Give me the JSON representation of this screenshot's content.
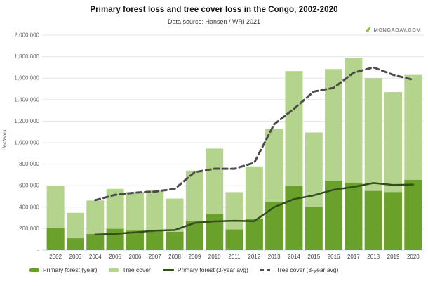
{
  "header": {
    "title": "Primary forest loss and tree cover loss in the Congo, 2002-2020",
    "subtitle": "Data source: Hansen / WRI 2021"
  },
  "branding": {
    "logo_text": "MONGABAY.COM",
    "leaf_color": "#8dc63f",
    "text_color": "#8a8a8a"
  },
  "chart_data": {
    "type": "bar",
    "title": "Primary forest loss and tree cover loss in the Congo, 2002-2020",
    "subtitle": "Data source: Hansen / WRI 2021",
    "xlabel": "",
    "ylabel": "Hectares",
    "ylim": [
      0,
      2000000
    ],
    "y_tick_values": [
      0,
      200000,
      400000,
      600000,
      800000,
      1000000,
      1200000,
      1400000,
      1600000,
      1800000,
      2000000
    ],
    "y_tick_labels": [
      "-",
      "200,000",
      "400,000",
      "600,000",
      "800,000",
      "1,000,000",
      "1,200,000",
      "1,400,000",
      "1,600,000",
      "1,800,000",
      "2,000,000"
    ],
    "grid": true,
    "legend_position": "bottom",
    "categories": [
      "2002",
      "2003",
      "2004",
      "2005",
      "2006",
      "2007",
      "2008",
      "2009",
      "2010",
      "2011",
      "2012",
      "2013",
      "2014",
      "2015",
      "2016",
      "2017",
      "2018",
      "2019",
      "2020"
    ],
    "series": [
      {
        "name": "Primary forest (year)",
        "type": "bar",
        "style": "solid",
        "color": "#6aa12b",
        "values": [
          205000,
          110000,
          150000,
          198000,
          181000,
          188000,
          170000,
          268000,
          335000,
          192000,
          290000,
          450000,
          595000,
          403000,
          645000,
          628000,
          551000,
          540000,
          654000
        ]
      },
      {
        "name": "Tree cover",
        "type": "bar",
        "style": "solid",
        "color": "#b4d38c",
        "values": [
          600000,
          348000,
          462000,
          570000,
          540000,
          555000,
          480000,
          740000,
          945000,
          540000,
          780000,
          1128000,
          1665000,
          1095000,
          1685000,
          1790000,
          1600000,
          1470000,
          1630000
        ]
      },
      {
        "name": "Primary forest (3-year avg)",
        "type": "line",
        "style": "solid",
        "color": "#344d1d",
        "values": [
          null,
          null,
          145000,
          152000,
          165000,
          181000,
          187000,
          253000,
          268000,
          274000,
          270000,
          400000,
          475000,
          510000,
          562000,
          588000,
          625000,
          606000,
          610000
        ]
      },
      {
        "name": "Tree cover (3-year avg)",
        "type": "line",
        "style": "dashed",
        "color": "#4d4d4d",
        "values": [
          null,
          null,
          465000,
          515000,
          535000,
          545000,
          570000,
          725000,
          758000,
          757000,
          813000,
          1170000,
          1315000,
          1475000,
          1510000,
          1650000,
          1700000,
          1630000,
          1585000
        ]
      }
    ],
    "colors": {
      "grid": "#e6e6e6",
      "baseline": "#d9d9d9",
      "tick_text": "#666666",
      "year_text": "#444444"
    }
  }
}
